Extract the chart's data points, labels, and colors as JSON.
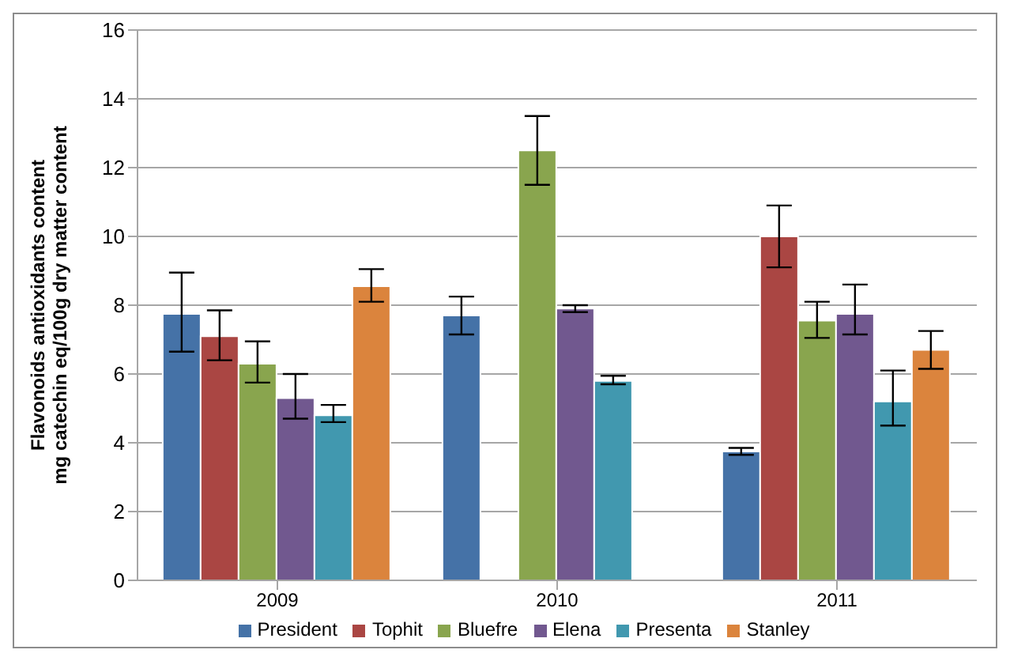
{
  "chart_data": {
    "type": "bar",
    "ylabel": "Flavonoids antioxidants content\nmg catechin eq/100g dry matter content",
    "categories": [
      "2009",
      "2010",
      "2011"
    ],
    "ylim": [
      0,
      16
    ],
    "yticks": [
      0,
      2,
      4,
      6,
      8,
      10,
      12,
      14,
      16
    ],
    "grid": "y",
    "legend": "bottom",
    "series": [
      {
        "name": "President",
        "color": "#4572a7",
        "values": [
          7.75,
          7.7,
          3.75
        ],
        "errors": [
          [
            6.65,
            8.95
          ],
          [
            7.15,
            8.25
          ],
          [
            3.65,
            3.85
          ]
        ]
      },
      {
        "name": "Tophit",
        "color": "#aa4643",
        "values": [
          7.1,
          null,
          10.0
        ],
        "errors": [
          [
            6.4,
            7.85
          ],
          null,
          [
            9.1,
            10.9
          ]
        ]
      },
      {
        "name": "Bluefre",
        "color": "#89a54e",
        "values": [
          6.3,
          12.5,
          7.55
        ],
        "errors": [
          [
            5.75,
            6.95
          ],
          [
            11.5,
            13.5
          ],
          [
            7.05,
            8.1
          ]
        ]
      },
      {
        "name": "Elena",
        "color": "#71588f",
        "values": [
          5.3,
          7.9,
          7.75
        ],
        "errors": [
          [
            4.7,
            6.0
          ],
          [
            7.8,
            8.0
          ],
          [
            7.15,
            8.6
          ]
        ]
      },
      {
        "name": "Presenta",
        "color": "#4198af",
        "values": [
          4.8,
          5.8,
          5.2
        ],
        "errors": [
          [
            4.6,
            5.1
          ],
          [
            5.7,
            5.95
          ],
          [
            4.5,
            6.1
          ]
        ]
      },
      {
        "name": "Stanley",
        "color": "#db843d",
        "values": [
          8.55,
          null,
          6.7
        ],
        "errors": [
          [
            8.1,
            9.05
          ],
          null,
          [
            6.15,
            7.25
          ]
        ]
      }
    ]
  }
}
